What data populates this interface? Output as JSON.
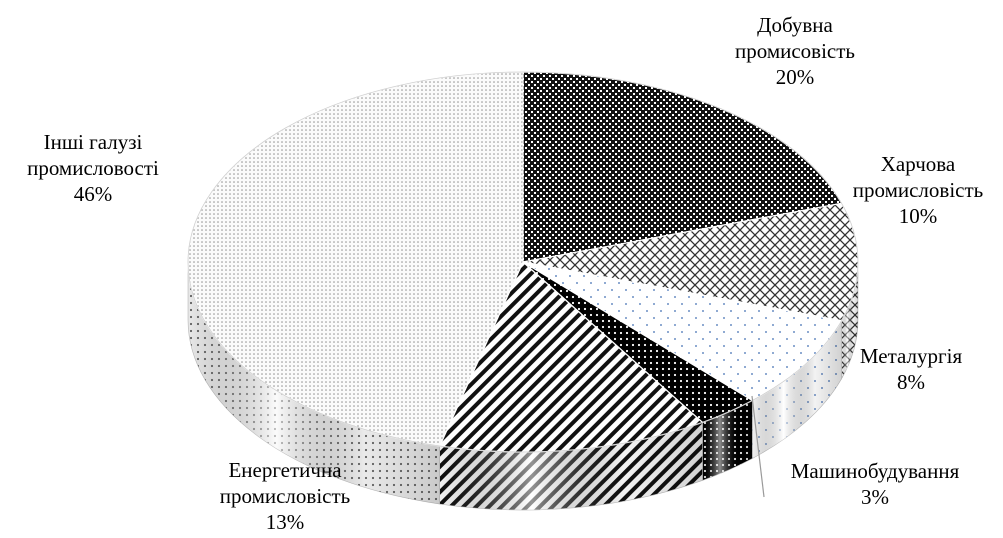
{
  "chart_data": {
    "type": "pie",
    "title": "",
    "unit": "%",
    "style": "3d",
    "slices": [
      {
        "label_lines": [
          "Добувна",
          "промисовість"
        ],
        "value": 20,
        "value_text": "20%",
        "pattern": "dense-checker"
      },
      {
        "label_lines": [
          "Харчова",
          "промисловість"
        ],
        "value": 10,
        "value_text": "10%",
        "pattern": "crosshatch"
      },
      {
        "label_lines": [
          "Металургія"
        ],
        "value": 8,
        "value_text": "8%",
        "pattern": "blue-dots"
      },
      {
        "label_lines": [
          "Машинобудування"
        ],
        "value": 3,
        "value_text": "3%",
        "pattern": "black-dots"
      },
      {
        "label_lines": [
          "Енергетична",
          "промисловість"
        ],
        "value": 13,
        "value_text": "13%",
        "pattern": "diagonal-stripes"
      },
      {
        "label_lines": [
          "Інші галузі",
          "промисловості"
        ],
        "value": 46,
        "value_text": "46%",
        "pattern": "fine-dots"
      }
    ]
  }
}
